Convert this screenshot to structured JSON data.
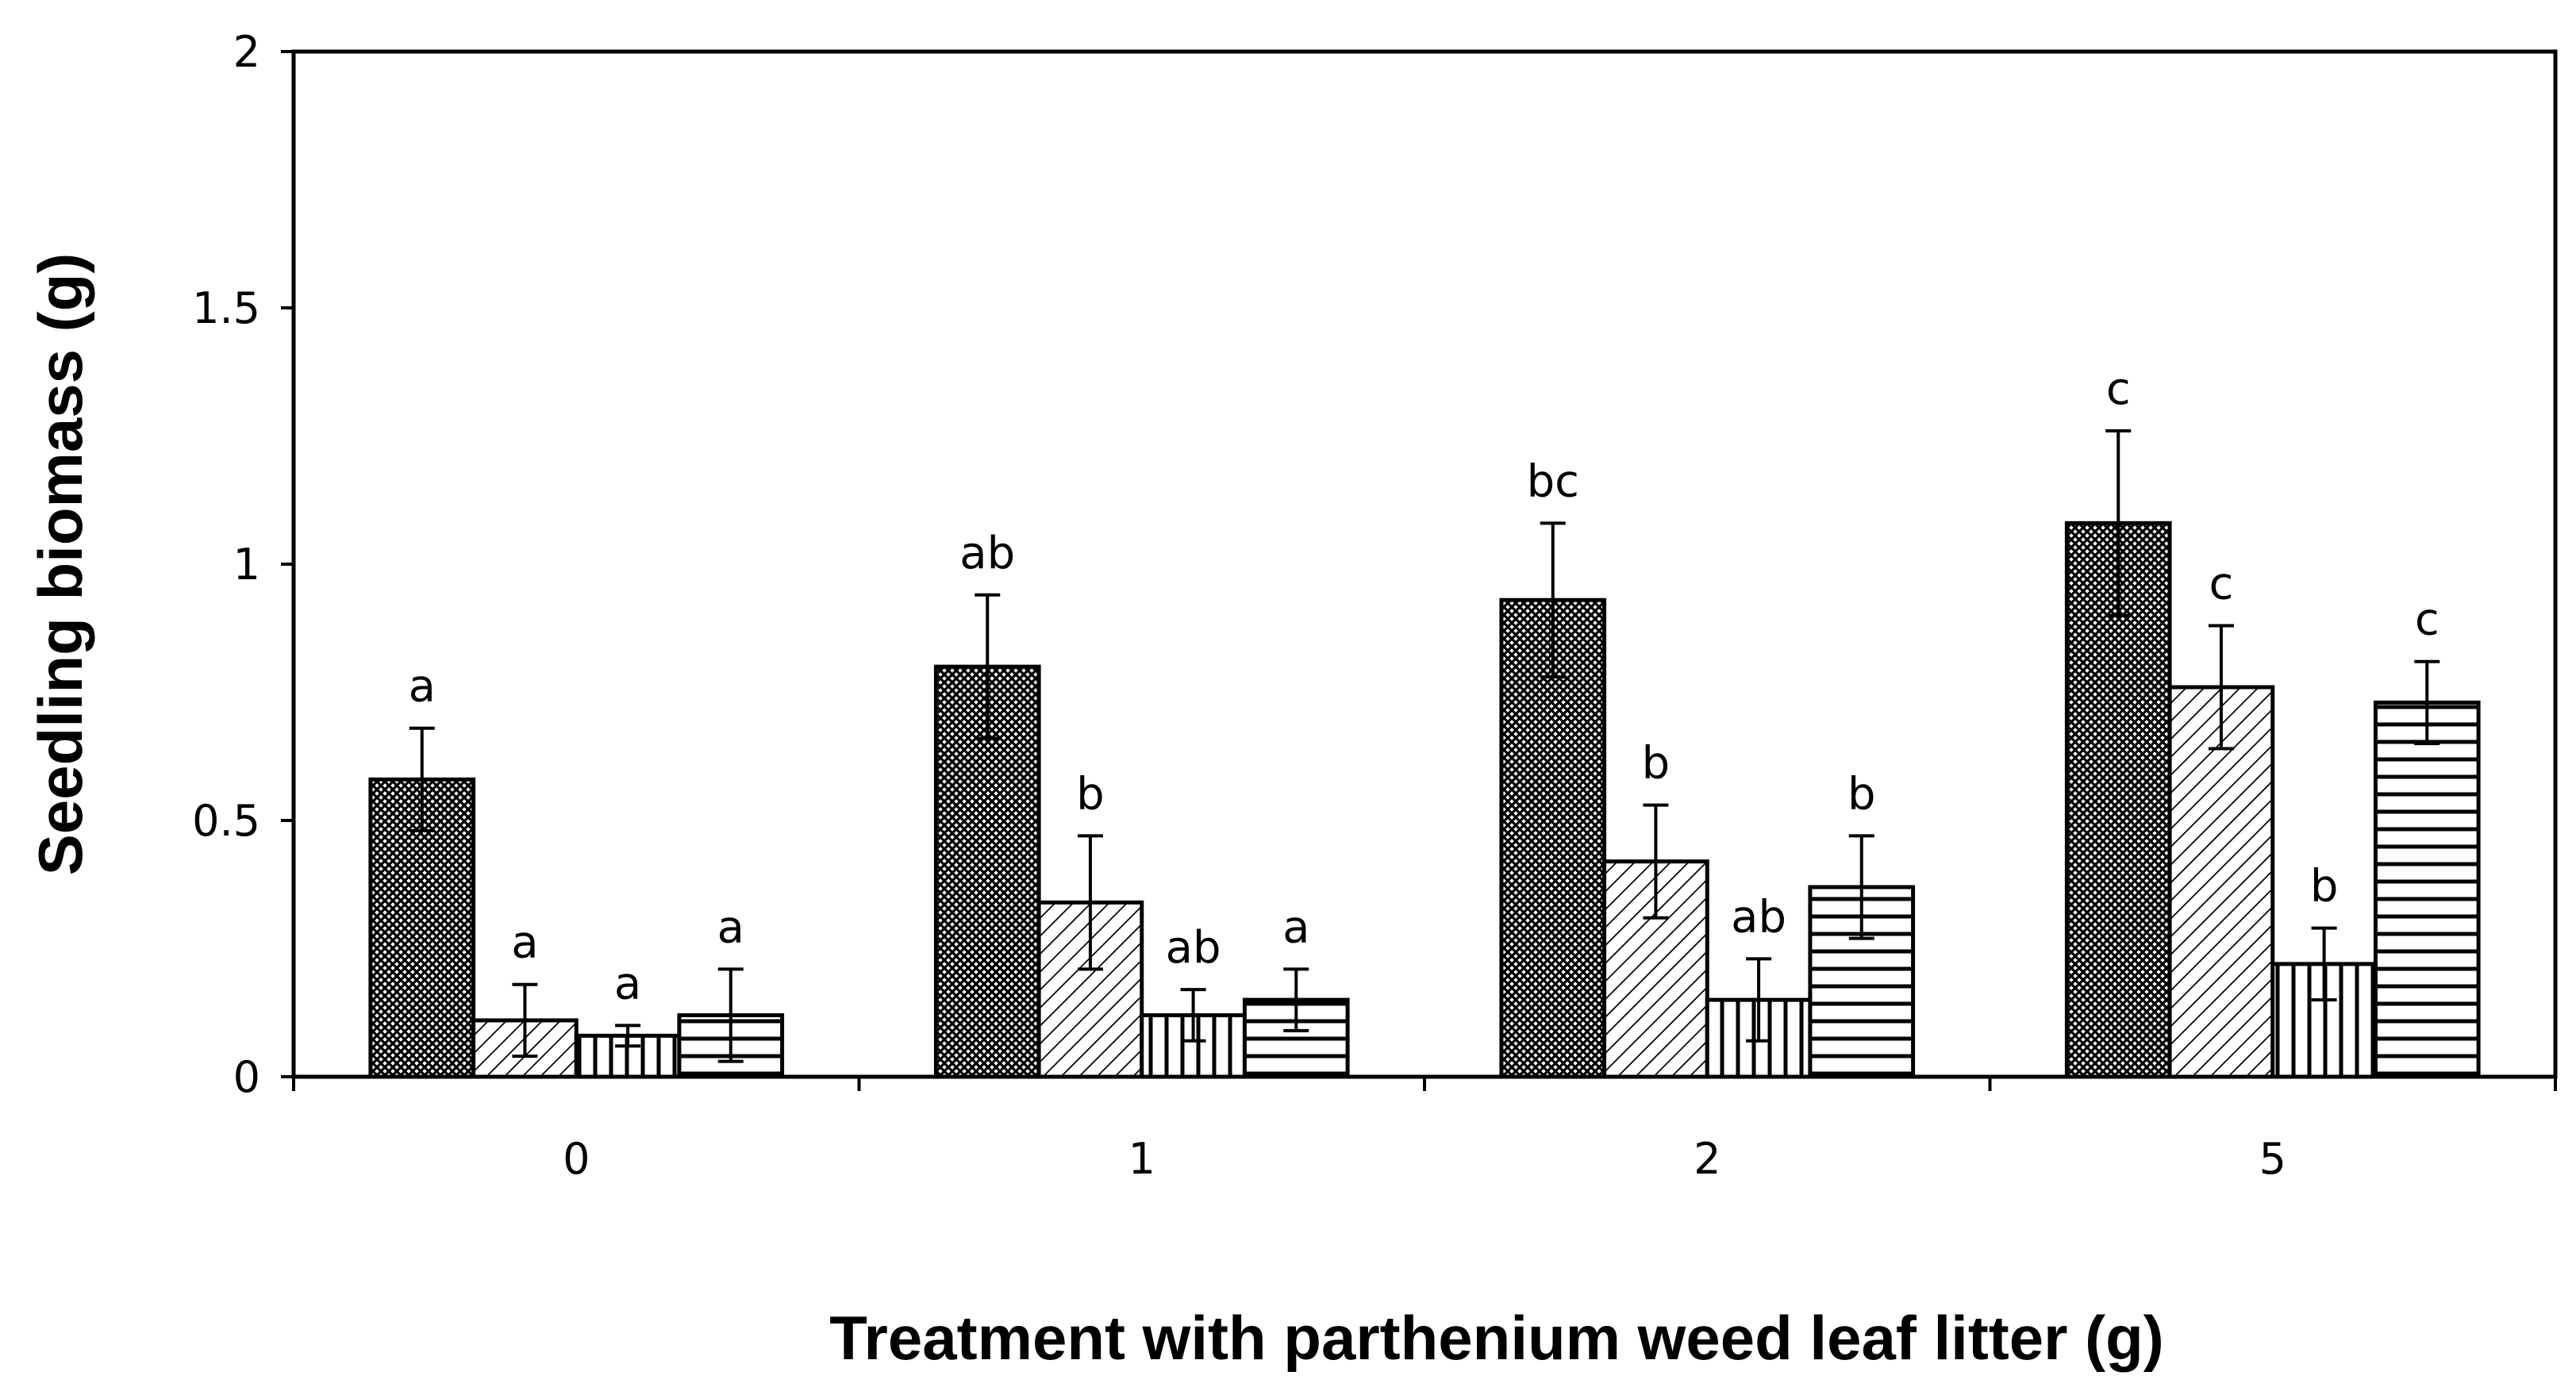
{
  "chart_data": {
    "type": "bar",
    "title": "",
    "xlabel": "Treatment with parthenium weed leaf litter (g)",
    "ylabel": "Seedling biomass (g)",
    "ylim": [
      0,
      2
    ],
    "yticks": [
      "0",
      "0.5",
      "1",
      "1.5",
      "2"
    ],
    "categories": [
      "0",
      "1",
      "2",
      "5"
    ],
    "grid": false,
    "legend": "none",
    "series": [
      {
        "pattern": "dense-crosshatch",
        "values": [
          0.58,
          0.8,
          0.93,
          1.08
        ],
        "errors": [
          0.1,
          0.14,
          0.15,
          0.18
        ],
        "labels": [
          "a",
          "ab",
          "bc",
          "c"
        ]
      },
      {
        "pattern": "diagonal-hatch",
        "values": [
          0.11,
          0.34,
          0.42,
          0.76
        ],
        "errors": [
          0.07,
          0.13,
          0.11,
          0.12
        ],
        "labels": [
          "a",
          "b",
          "b",
          "c"
        ]
      },
      {
        "pattern": "vertical-stripes",
        "values": [
          0.08,
          0.12,
          0.15,
          0.22
        ],
        "errors": [
          0.02,
          0.05,
          0.08,
          0.07
        ],
        "labels": [
          "a",
          "ab",
          "ab",
          "b"
        ]
      },
      {
        "pattern": "horizontal-stripes",
        "values": [
          0.12,
          0.15,
          0.37,
          0.73
        ],
        "errors": [
          0.09,
          0.06,
          0.1,
          0.08
        ],
        "labels": [
          "a",
          "a",
          "b",
          "c"
        ]
      }
    ],
    "colors": {
      "bar_fill": "#ffffff",
      "stroke": "#000000"
    }
  }
}
